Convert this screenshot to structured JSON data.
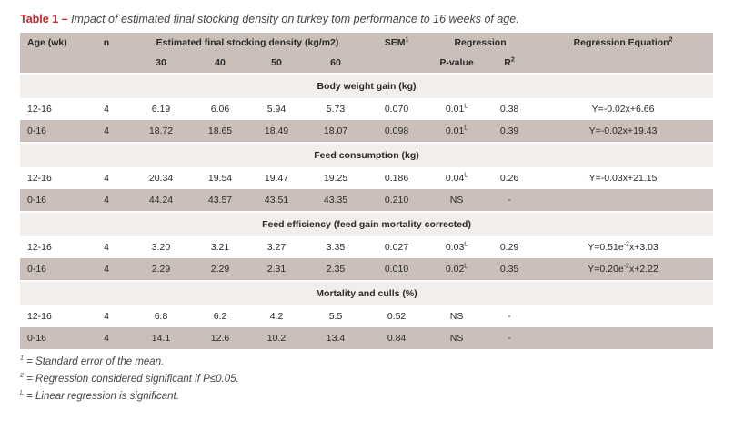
{
  "caption": {
    "label": "Table 1 –",
    "text": "Impact of estimated final stocking density on turkey tom performance to 16 weeks of age."
  },
  "header": {
    "age": "Age (wk)",
    "n": "n",
    "density_title": "Estimated final stocking density (kg/m2)",
    "sem": "SEM",
    "sem_sup": "1",
    "regression": "Regression",
    "equation": "Regression Equation",
    "equation_sup": "2",
    "densities": [
      "30",
      "40",
      "50",
      "60"
    ],
    "pvalue": "P-value",
    "r2_base": "R",
    "r2_sup": "2"
  },
  "sections": [
    {
      "title": "Body weight gain (kg)",
      "rows": [
        {
          "age": "12-16",
          "n": "4",
          "vals": [
            "6.19",
            "6.06",
            "5.94",
            "5.73"
          ],
          "sem": "0.070",
          "p": "0.01",
          "p_sup": "L",
          "r2": "0.38",
          "eq_pre": "Y=-0.02x+6.66",
          "eq_sup": "",
          "eq_post": ""
        },
        {
          "age": "0-16",
          "n": "4",
          "vals": [
            "18.72",
            "18.65",
            "18.49",
            "18.07"
          ],
          "sem": "0.098",
          "p": "0.01",
          "p_sup": "L",
          "r2": "0.39",
          "eq_pre": "Y=-0.02x+19.43",
          "eq_sup": "",
          "eq_post": ""
        }
      ]
    },
    {
      "title": "Feed consumption (kg)",
      "rows": [
        {
          "age": "12-16",
          "n": "4",
          "vals": [
            "20.34",
            "19.54",
            "19.47",
            "19.25"
          ],
          "sem": "0.186",
          "p": "0.04",
          "p_sup": "L",
          "r2": "0.26",
          "eq_pre": "Y=-0.03x+21.15",
          "eq_sup": "",
          "eq_post": ""
        },
        {
          "age": "0-16",
          "n": "4",
          "vals": [
            "44.24",
            "43.57",
            "43.51",
            "43.35"
          ],
          "sem": "0.210",
          "p": "NS",
          "p_sup": "",
          "r2": "-",
          "eq_pre": "",
          "eq_sup": "",
          "eq_post": ""
        }
      ]
    },
    {
      "title": "Feed efficiency (feed gain mortality corrected)",
      "rows": [
        {
          "age": "12-16",
          "n": "4",
          "vals": [
            "3.20",
            "3.21",
            "3.27",
            "3.35"
          ],
          "sem": "0.027",
          "p": "0.03",
          "p_sup": "L",
          "r2": "0.29",
          "eq_pre": "Y=0.51e",
          "eq_sup": "-2",
          "eq_post": "x+3.03"
        },
        {
          "age": "0-16",
          "n": "4",
          "vals": [
            "2.29",
            "2.29",
            "2.31",
            "2.35"
          ],
          "sem": "0.010",
          "p": "0.02",
          "p_sup": "L",
          "r2": "0.35",
          "eq_pre": "Y=0.20e",
          "eq_sup": "-2",
          "eq_post": "x+2.22"
        }
      ]
    },
    {
      "title": "Mortality and culls (%)",
      "rows": [
        {
          "age": "12-16",
          "n": "4",
          "vals": [
            "6.8",
            "6.2",
            "4.2",
            "5.5"
          ],
          "sem": "0.52",
          "p": "NS",
          "p_sup": "",
          "r2": "-",
          "eq_pre": "",
          "eq_sup": "",
          "eq_post": ""
        },
        {
          "age": "0-16",
          "n": "4",
          "vals": [
            "14.1",
            "12.6",
            "10.2",
            "13.4"
          ],
          "sem": "0.84",
          "p": "NS",
          "p_sup": "",
          "r2": "-",
          "eq_pre": "",
          "eq_sup": "",
          "eq_post": ""
        }
      ]
    }
  ],
  "footnotes": [
    {
      "mark": "1",
      "text": "= Standard error of the mean."
    },
    {
      "mark": "2",
      "text": "= Regression considered significant if P≤0.05."
    },
    {
      "mark": "L",
      "text": "= Linear regression is significant."
    }
  ],
  "colors": {
    "caption_label": "#c0262d",
    "header_row": "#cbbfb9",
    "section_row": "#f2eeec"
  }
}
